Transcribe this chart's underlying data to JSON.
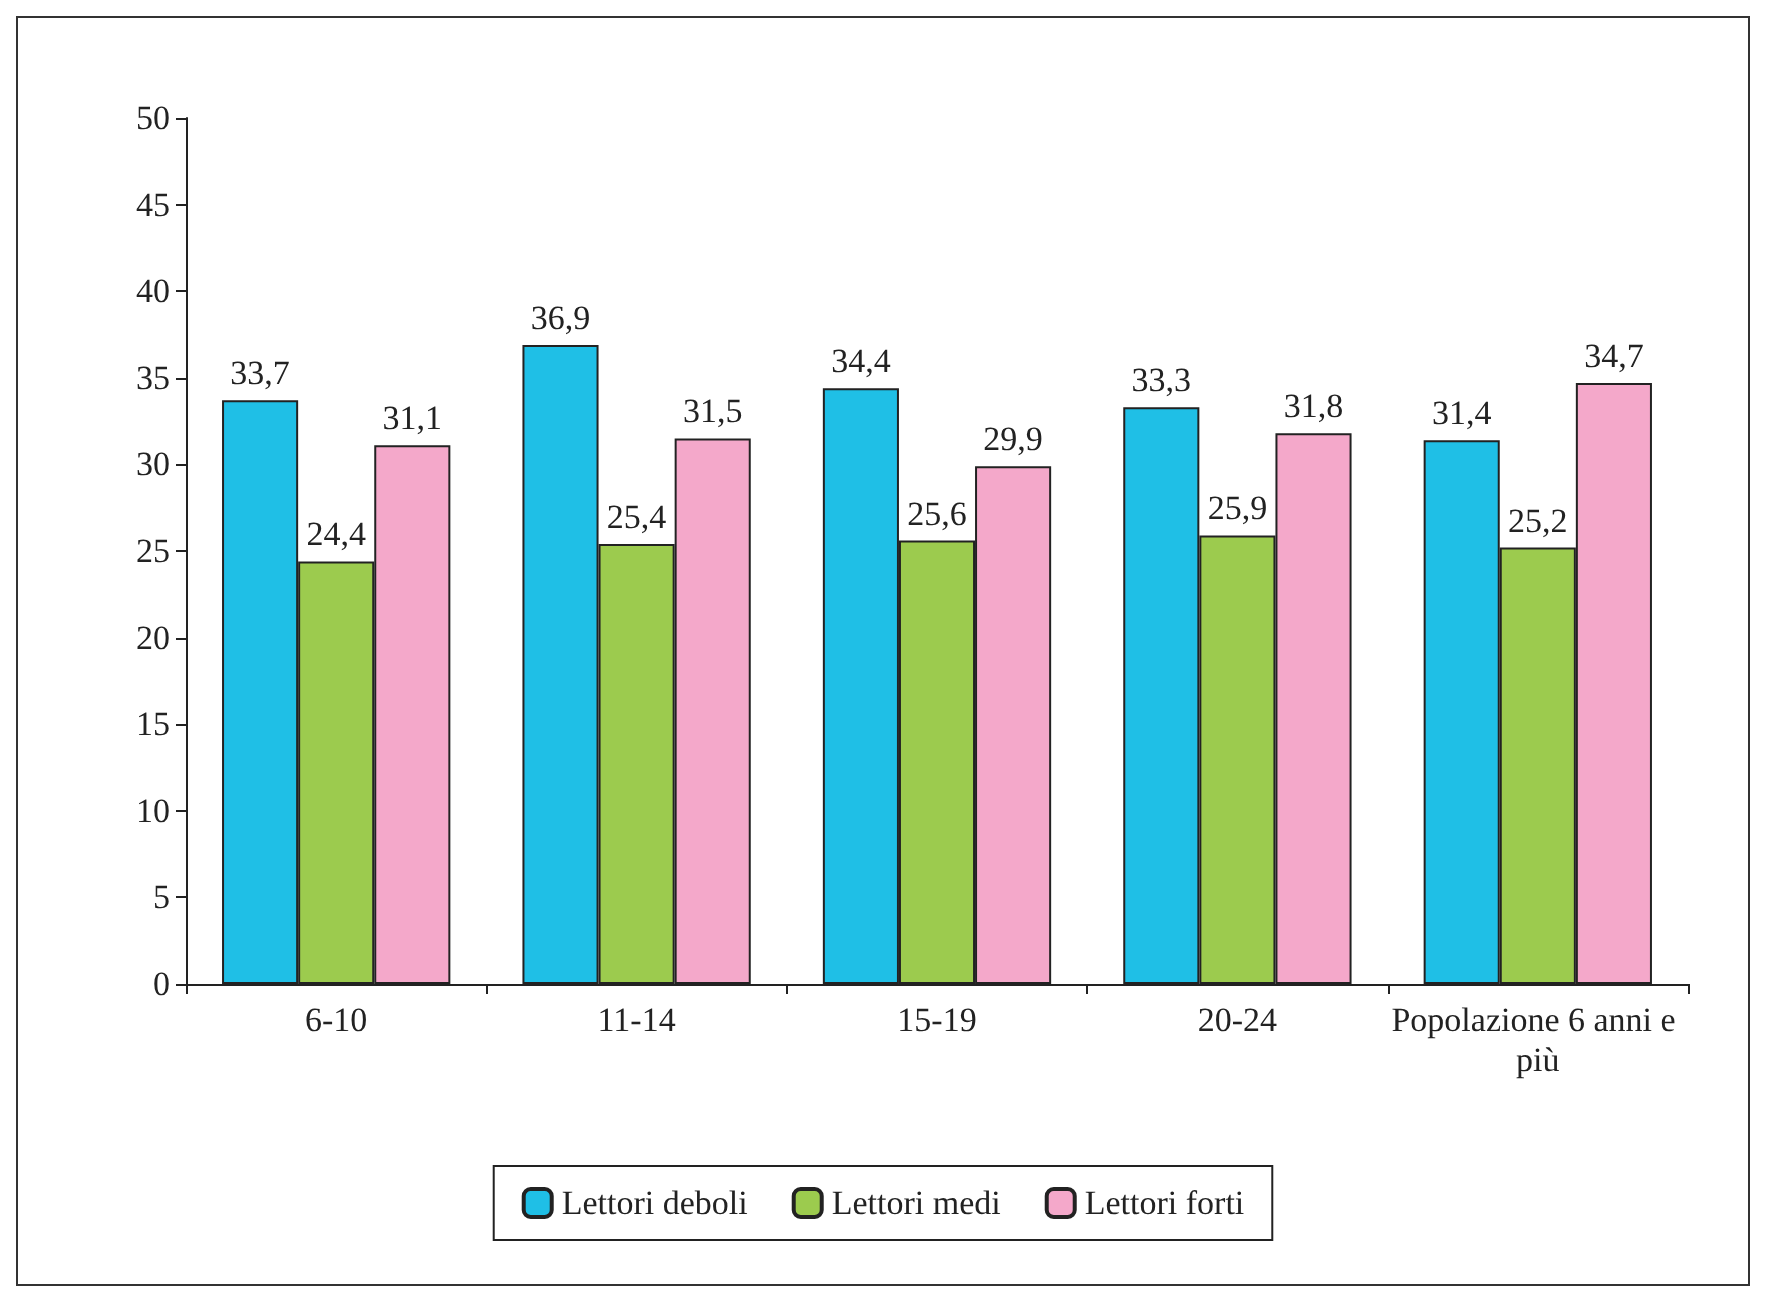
{
  "chart_data": {
    "type": "bar",
    "categories": [
      "6-10",
      "11-14",
      "15-19",
      "20-24",
      "Popolazione 6 anni e più"
    ],
    "series": [
      {
        "name": "Lettori deboli",
        "color": "#1fbfe6",
        "values": [
          33.7,
          36.9,
          34.4,
          33.3,
          31.4
        ],
        "value_labels": [
          "33,7",
          "36,9",
          "34,4",
          "33,3",
          "31,4"
        ]
      },
      {
        "name": "Lettori medi",
        "color": "#9ccb4e",
        "values": [
          24.4,
          25.4,
          25.6,
          25.9,
          25.2
        ],
        "value_labels": [
          "24,4",
          "25,4",
          "25,6",
          "25,9",
          "25,2"
        ]
      },
      {
        "name": "Lettori forti",
        "color": "#f4a8ca",
        "values": [
          31.1,
          31.5,
          29.9,
          31.8,
          34.7
        ],
        "value_labels": [
          "31,1",
          "31,5",
          "29,9",
          "31,8",
          "34,7"
        ]
      }
    ],
    "ylim": [
      0,
      50
    ],
    "yticks": [
      0,
      5,
      10,
      15,
      20,
      25,
      30,
      35,
      40,
      45,
      50
    ],
    "grid": false,
    "legend": "bottom"
  }
}
